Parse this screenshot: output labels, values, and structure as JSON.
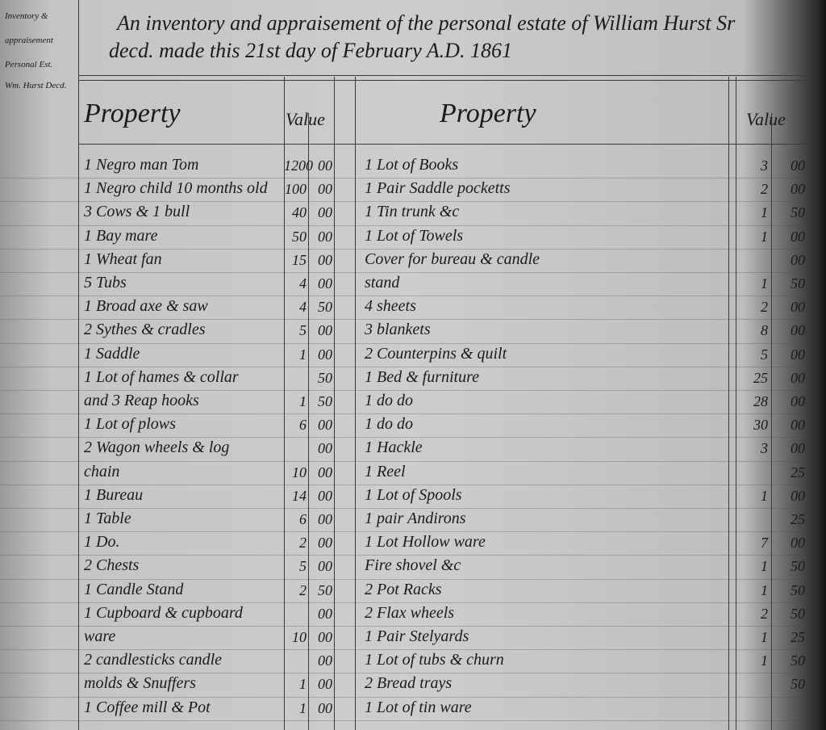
{
  "margin_note": [
    "Inventory &",
    "appraisement",
    "Personal Est.",
    "Wm. Hurst Decd."
  ],
  "header": {
    "title": [
      "An inventory and appraisement of the personal estate of William Hurst Sr",
      "decd. made this 21st day of February A.D. 1861"
    ],
    "columns": [
      "Property",
      "Value",
      "Property",
      "Value"
    ]
  },
  "left": {
    "rows": [
      {
        "property": "1 Negro man Tom",
        "dollars": "1200",
        "cents": "00"
      },
      {
        "property": "1 Negro child 10 months old",
        "dollars": "100",
        "cents": "00"
      },
      {
        "property": "3 Cows & 1 bull",
        "dollars": "40",
        "cents": "00"
      },
      {
        "property": "1 Bay mare",
        "dollars": "50",
        "cents": "00"
      },
      {
        "property": "1 Wheat fan",
        "dollars": "15",
        "cents": "00"
      },
      {
        "property": "5 Tubs",
        "dollars": "4",
        "cents": "00"
      },
      {
        "property": "1 Broad axe & saw",
        "dollars": "4",
        "cents": "50"
      },
      {
        "property": "2 Sythes & cradles",
        "dollars": "5",
        "cents": "00"
      },
      {
        "property": "1 Saddle",
        "dollars": "1",
        "cents": "00"
      },
      {
        "property": "1 Lot of hames & collar",
        "cents": "50"
      },
      {
        "property": "and 3 Reap hooks",
        "dollars": "1",
        "cents": "50"
      },
      {
        "property": "1 Lot of plows",
        "dollars": "6",
        "cents": "00"
      },
      {
        "property": "2 Wagon wheels & log",
        "cents": "00"
      },
      {
        "property": "chain",
        "dollars": "10",
        "cents": "00"
      },
      {
        "property": "1 Bureau",
        "dollars": "14",
        "cents": "00"
      },
      {
        "property": "1 Table",
        "dollars": "6",
        "cents": "00"
      },
      {
        "property": "1 Do.",
        "dollars": "2",
        "cents": "00"
      },
      {
        "property": "2 Chests",
        "dollars": "5",
        "cents": "00"
      },
      {
        "property": "1 Candle Stand",
        "dollars": "2",
        "cents": "50"
      },
      {
        "property": "1 Cupboard & cupboard",
        "cents": "00"
      },
      {
        "property": "ware",
        "dollars": "10",
        "cents": "00"
      },
      {
        "property": "2 candlesticks candle",
        "cents": "00"
      },
      {
        "property": "molds & Snuffers",
        "dollars": "1",
        "cents": "00"
      },
      {
        "property": "1 Coffee mill & Pot",
        "dollars": "1",
        "cents": "00"
      }
    ]
  },
  "right": {
    "rows": [
      {
        "property": "1 Lot of Books",
        "dollars": "3",
        "cents": "00"
      },
      {
        "property": "1 Pair Saddle pocketts",
        "dollars": "2",
        "cents": "00"
      },
      {
        "property": "1 Tin trunk &c",
        "dollars": "1",
        "cents": "50"
      },
      {
        "property": "1 Lot of Towels",
        "dollars": "1",
        "cents": "00"
      },
      {
        "property": "Cover for bureau & candle",
        "cents": "00"
      },
      {
        "property": "stand",
        "dollars": "1",
        "cents": "50"
      },
      {
        "property": "4 sheets",
        "dollars": "2",
        "cents": "00"
      },
      {
        "property": "3 blankets",
        "dollars": "8",
        "cents": "00"
      },
      {
        "property": "2 Counterpins & quilt",
        "dollars": "5",
        "cents": "00"
      },
      {
        "property": "1 Bed & furniture",
        "dollars": "25",
        "cents": "00"
      },
      {
        "property": "1 do do",
        "dollars": "28",
        "cents": "00"
      },
      {
        "property": "1 do do",
        "dollars": "30",
        "cents": "00"
      },
      {
        "property": "1 Hackle",
        "dollars": "3",
        "cents": "00"
      },
      {
        "property": "1 Reel",
        "cents": "25"
      },
      {
        "property": "1 Lot of Spools",
        "dollars": "1",
        "cents": "00"
      },
      {
        "property": "1 pair Andirons",
        "cents": "25"
      },
      {
        "property": "1 Lot Hollow ware",
        "dollars": "7",
        "cents": "00"
      },
      {
        "property": "Fire shovel &c",
        "dollars": "1",
        "cents": "50"
      },
      {
        "property": "2 Pot Racks",
        "dollars": "1",
        "cents": "50"
      },
      {
        "property": "2 Flax wheels",
        "dollars": "2",
        "cents": "50"
      },
      {
        "property": "1 Pair Stelyards",
        "dollars": "1",
        "cents": "25"
      },
      {
        "property": "1 Lot of tubs & churn",
        "dollars": "1",
        "cents": "50"
      },
      {
        "property": "2 Bread trays",
        "cents": "50"
      },
      {
        "property": "1 Lot of tin ware"
      }
    ]
  }
}
